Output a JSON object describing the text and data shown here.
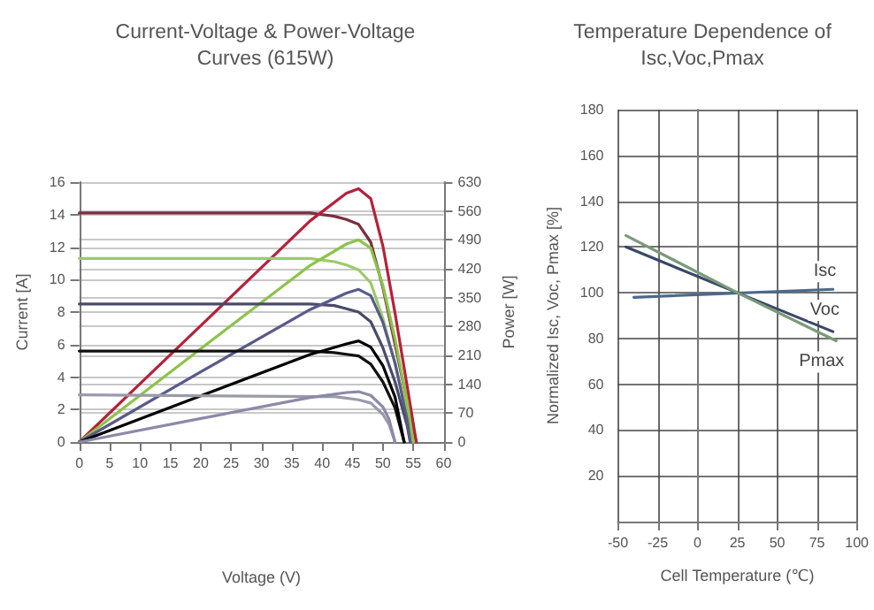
{
  "chart_data": [
    {
      "type": "line",
      "title": "Current-Voltage & Power-Voltage\nCurves (615W)",
      "xlabel": "Voltage (V)",
      "ylabel": "Current [A]",
      "y2label": "Power [W]",
      "xlim": [
        0,
        60
      ],
      "xticks": [
        0,
        5,
        10,
        15,
        20,
        25,
        30,
        35,
        40,
        45,
        50,
        55,
        60
      ],
      "ylim": [
        0,
        16
      ],
      "yticks": [
        0,
        2,
        4,
        6,
        8,
        10,
        12,
        14,
        16
      ],
      "y2lim": [
        0,
        630
      ],
      "y2ticks": [
        0,
        70,
        140,
        210,
        280,
        350,
        420,
        490,
        560,
        630
      ],
      "grid": "y",
      "legend": false,
      "marker": "none",
      "line_style": "solid",
      "series": [
        {
          "color": "#7a3040",
          "x": [
            0,
            30,
            38,
            42,
            44,
            46,
            48,
            50,
            52,
            54,
            55.5
          ],
          "values": [
            14.1,
            14.1,
            14.1,
            13.9,
            13.7,
            13.4,
            12.3,
            9.5,
            6,
            2.5,
            0
          ]
        },
        {
          "color": "#b5213a",
          "axis": "y2",
          "x": [
            0,
            10,
            20,
            30,
            38,
            44,
            46,
            48,
            50,
            52,
            54,
            55.5
          ],
          "values": [
            0,
            141,
            282,
            423,
            536,
            603,
            614,
            590,
            475,
            312,
            135,
            0
          ]
        },
        {
          "color": "#9acb6a",
          "x": [
            0,
            38,
            42,
            44,
            46,
            48,
            50,
            52,
            54,
            55
          ],
          "values": [
            11.3,
            11.3,
            11.1,
            10.9,
            10.6,
            9.8,
            7.6,
            4.8,
            1.8,
            0
          ]
        },
        {
          "color": "#8cc34a",
          "axis": "y2",
          "x": [
            0,
            20,
            38,
            44,
            46,
            48,
            50,
            52,
            54,
            55
          ],
          "values": [
            0,
            226,
            428,
            480,
            490,
            470,
            380,
            250,
            97,
            0
          ]
        },
        {
          "color": "#4a4a6a",
          "x": [
            0,
            38,
            42,
            44,
            46,
            48,
            50,
            52,
            54,
            54.5
          ],
          "values": [
            8.5,
            8.5,
            8.4,
            8.2,
            8,
            7.4,
            5.8,
            3.7,
            1,
            0
          ]
        },
        {
          "color": "#585a8a",
          "axis": "y2",
          "x": [
            0,
            20,
            38,
            44,
            46,
            48,
            50,
            52,
            54,
            54.5
          ],
          "values": [
            0,
            170,
            321,
            361,
            370,
            355,
            290,
            192,
            54,
            0
          ]
        },
        {
          "color": "#111111",
          "x": [
            0,
            38,
            42,
            44,
            46,
            48,
            50,
            52,
            53.5
          ],
          "values": [
            5.6,
            5.6,
            5.5,
            5.4,
            5.3,
            4.8,
            3.7,
            2.1,
            0
          ]
        },
        {
          "color": "#000000",
          "axis": "y2",
          "x": [
            0,
            20,
            38,
            44,
            46,
            48,
            50,
            52,
            53.5
          ],
          "values": [
            0,
            112,
            212,
            238,
            245,
            230,
            185,
            109,
            0
          ]
        },
        {
          "color": "#9a9aa8",
          "x": [
            0,
            38,
            42,
            44,
            46,
            48,
            50,
            51,
            52
          ],
          "values": [
            2.9,
            2.8,
            2.8,
            2.7,
            2.6,
            2.4,
            1.7,
            1.1,
            0
          ]
        },
        {
          "color": "#8a8aa8",
          "axis": "y2",
          "x": [
            0,
            20,
            38,
            44,
            46,
            48,
            50,
            51,
            52
          ],
          "values": [
            0,
            57,
            108,
            120,
            122,
            113,
            85,
            56,
            0
          ]
        }
      ]
    },
    {
      "type": "line",
      "title": "Temperature Dependence of\nIsc,Voc,Pmax",
      "xlabel": "Cell Temperature (℃)",
      "ylabel": "Normalized Isc, Voc, Pmax [%]",
      "xlim": [
        -50,
        100
      ],
      "xticks": [
        -50,
        -25,
        0,
        25,
        50,
        75,
        100
      ],
      "ylim": [
        0,
        180
      ],
      "yticks": [
        20,
        40,
        60,
        80,
        100,
        120,
        140,
        160,
        180
      ],
      "grid": true,
      "legend": false,
      "marker": "none",
      "line_style": "solid",
      "series": [
        {
          "name": "Isc",
          "color": "#4a6a8a",
          "x": [
            -40,
            85
          ],
          "values": [
            98,
            101.5
          ]
        },
        {
          "name": "Voc",
          "color": "#3a4868",
          "x": [
            -45,
            25,
            85
          ],
          "values": [
            120,
            100,
            83
          ]
        },
        {
          "name": "Pmax",
          "color": "#7a9a7a",
          "x": [
            -45,
            25,
            87
          ],
          "values": [
            125,
            100,
            79
          ]
        }
      ]
    }
  ]
}
